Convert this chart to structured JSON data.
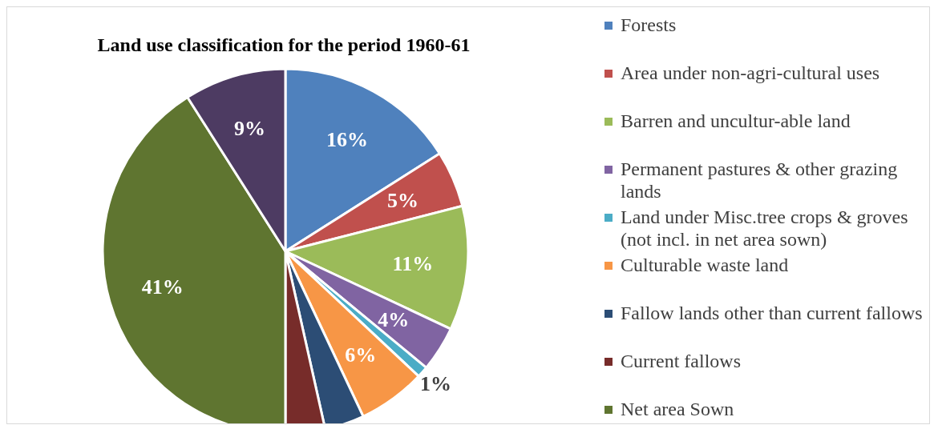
{
  "chart_data": {
    "type": "pie",
    "title": "Land use classification for the period 1960-61",
    "categories": [
      "Forests",
      "Area under non-agri-cultural uses",
      "Barren and uncultur-able land",
      "Permanent pastures & other grazing lands",
      "Land under Misc.tree crops & groves (not incl. in net area sown)",
      "Culturable waste land",
      "Fallow lands other than current fallows",
      "Current fallows",
      "Net area Sown",
      null
    ],
    "values": [
      16,
      5,
      11,
      4,
      1,
      6,
      3.5,
      3.5,
      41,
      9
    ],
    "colors": [
      "#4f81bd",
      "#c0504d",
      "#9bbb59",
      "#8064a2",
      "#4bacc6",
      "#f79646",
      "#2c4d75",
      "#772c2a",
      "#5f7530",
      "#4d3b62"
    ],
    "value_labels": [
      "16%",
      "5%",
      "11%",
      "4%",
      "1%",
      "6%",
      null,
      null,
      "41%",
      "9%"
    ],
    "legend": "right"
  }
}
